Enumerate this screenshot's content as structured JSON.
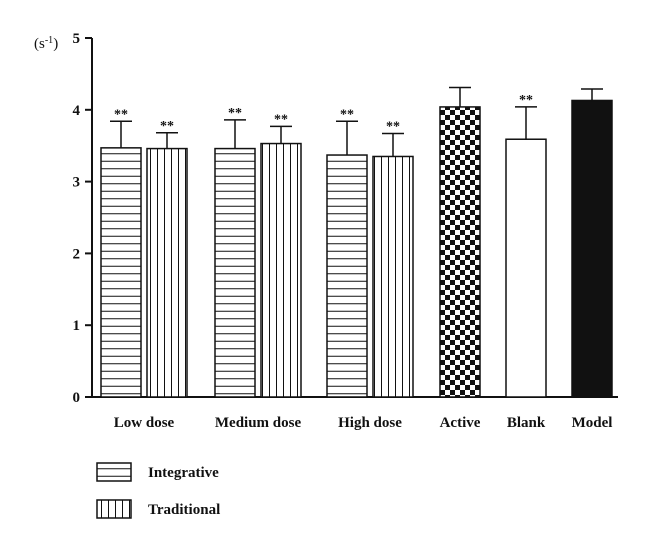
{
  "chart_data": {
    "type": "bar",
    "y_unit": "(s",
    "y_unit_sup": "-1",
    "y_unit_close": ")",
    "ylim": [
      0,
      5
    ],
    "yticks": [
      0,
      1,
      2,
      3,
      4,
      5
    ],
    "grid": false,
    "legend_position": "bottom-left",
    "categories": [
      "Low dose",
      "Medium dose",
      "High dose",
      "Active",
      "Blank",
      "Model"
    ],
    "series_legend": [
      {
        "name": "Integrative",
        "pattern": "horizontal-lines"
      },
      {
        "name": "Traditional",
        "pattern": "vertical-lines"
      }
    ],
    "bars": [
      {
        "category": "Low dose",
        "series": "Integrative",
        "pattern": "horizontal-lines",
        "value": 3.47,
        "error": 0.37,
        "significance": "**"
      },
      {
        "category": "Low dose",
        "series": "Traditional",
        "pattern": "vertical-lines",
        "value": 3.46,
        "error": 0.22,
        "significance": "**"
      },
      {
        "category": "Medium dose",
        "series": "Integrative",
        "pattern": "horizontal-lines",
        "value": 3.46,
        "error": 0.4,
        "significance": "**"
      },
      {
        "category": "Medium dose",
        "series": "Traditional",
        "pattern": "vertical-lines",
        "value": 3.53,
        "error": 0.24,
        "significance": "**"
      },
      {
        "category": "High dose",
        "series": "Integrative",
        "pattern": "horizontal-lines",
        "value": 3.37,
        "error": 0.47,
        "significance": "**"
      },
      {
        "category": "High dose",
        "series": "Traditional",
        "pattern": "vertical-lines",
        "value": 3.35,
        "error": 0.32,
        "significance": "**"
      },
      {
        "category": "Active",
        "series": "",
        "pattern": "checker",
        "value": 4.04,
        "error": 0.27,
        "significance": ""
      },
      {
        "category": "Blank",
        "series": "",
        "pattern": "white",
        "value": 3.59,
        "error": 0.45,
        "significance": "**"
      },
      {
        "category": "Model",
        "series": "",
        "pattern": "black",
        "value": 4.13,
        "error": 0.16,
        "significance": ""
      }
    ]
  }
}
